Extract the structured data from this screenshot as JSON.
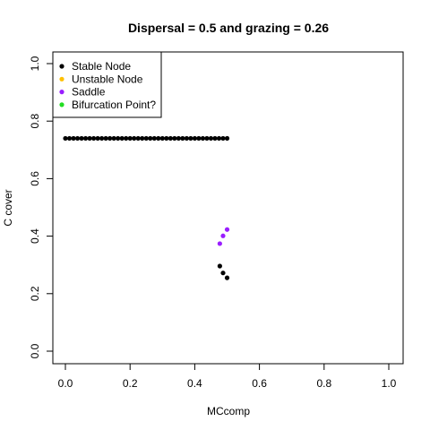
{
  "chart_data": {
    "type": "scatter",
    "title": "Dispersal =  0.5 and grazing = 0.26",
    "xlabel": "MCcomp",
    "ylabel": "C cover",
    "xlim": [
      0,
      1
    ],
    "ylim": [
      0,
      1
    ],
    "x_ticks": [
      "0.0",
      "0.2",
      "0.4",
      "0.6",
      "0.8",
      "1.0"
    ],
    "y_ticks": [
      "0.0",
      "0.2",
      "0.4",
      "0.6",
      "0.8",
      "1.0"
    ],
    "grid": false,
    "legend_position": "top-left",
    "legend": [
      {
        "label": "Stable Node",
        "color": "#000000"
      },
      {
        "label": "Unstable Node",
        "color": "#ffc000"
      },
      {
        "label": "Saddle",
        "color": "#9a1eff"
      },
      {
        "label": "Bifurcation Point?",
        "color": "#22dd22"
      }
    ],
    "series": [
      {
        "name": "Stable Node",
        "color": "#000000",
        "points": [
          [
            0.0,
            0.74
          ],
          [
            0.0125,
            0.74
          ],
          [
            0.025,
            0.74
          ],
          [
            0.0375,
            0.74
          ],
          [
            0.05,
            0.74
          ],
          [
            0.0625,
            0.74
          ],
          [
            0.075,
            0.74
          ],
          [
            0.0875,
            0.74
          ],
          [
            0.1,
            0.74
          ],
          [
            0.1125,
            0.74
          ],
          [
            0.125,
            0.74
          ],
          [
            0.1375,
            0.74
          ],
          [
            0.15,
            0.74
          ],
          [
            0.1625,
            0.74
          ],
          [
            0.175,
            0.74
          ],
          [
            0.1875,
            0.74
          ],
          [
            0.2,
            0.74
          ],
          [
            0.2125,
            0.74
          ],
          [
            0.225,
            0.74
          ],
          [
            0.2375,
            0.74
          ],
          [
            0.25,
            0.74
          ],
          [
            0.2625,
            0.74
          ],
          [
            0.275,
            0.74
          ],
          [
            0.2875,
            0.74
          ],
          [
            0.3,
            0.74
          ],
          [
            0.3125,
            0.74
          ],
          [
            0.325,
            0.74
          ],
          [
            0.3375,
            0.74
          ],
          [
            0.35,
            0.74
          ],
          [
            0.3625,
            0.74
          ],
          [
            0.375,
            0.74
          ],
          [
            0.3875,
            0.74
          ],
          [
            0.4,
            0.74
          ],
          [
            0.4125,
            0.74
          ],
          [
            0.425,
            0.74
          ],
          [
            0.4375,
            0.74
          ],
          [
            0.45,
            0.74
          ],
          [
            0.4625,
            0.74
          ],
          [
            0.475,
            0.74
          ],
          [
            0.4875,
            0.74
          ],
          [
            0.5,
            0.74
          ],
          [
            0.4775,
            0.296
          ],
          [
            0.4875,
            0.272
          ],
          [
            0.5,
            0.255
          ]
        ]
      },
      {
        "name": "Saddle",
        "color": "#9a1eff",
        "points": [
          [
            0.4775,
            0.374
          ],
          [
            0.4875,
            0.401
          ],
          [
            0.5,
            0.423
          ]
        ]
      }
    ]
  }
}
